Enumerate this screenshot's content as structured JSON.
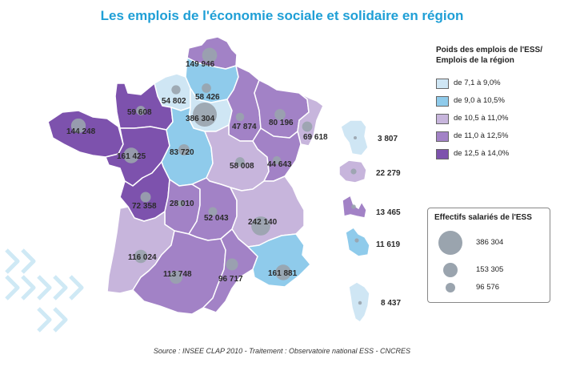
{
  "title": "Les emplois de l'économie sociale et solidaire en région",
  "legend": {
    "title_line1": "Poids des emplois de l'ESS/",
    "title_line2": "Emplois de la région",
    "classes": [
      {
        "label": "de 7,1 à 9,0%",
        "color": "#cfe6f4"
      },
      {
        "label": "de 9,0 à 10,5%",
        "color": "#8fcbeb"
      },
      {
        "label": "de 10,5 à 11,0%",
        "color": "#c7b5dc"
      },
      {
        "label": "de 11,0 à 12,5%",
        "color": "#a282c6"
      },
      {
        "label": "de 12,5 à 14,0%",
        "color": "#7d52ad"
      }
    ]
  },
  "size_legend": {
    "title": "Effectifs salariés de l'ESS",
    "values": [
      "386 304",
      "153 305",
      "96 576"
    ]
  },
  "regions": [
    {
      "name": "Nord-Pas-de-Calais",
      "value": "149 946",
      "class": 3
    },
    {
      "name": "Haute-Normandie",
      "value": "54 802",
      "class": 0
    },
    {
      "name": "Picardie",
      "value": "58 426",
      "class": 1
    },
    {
      "name": "Basse-Normandie",
      "value": "59 608",
      "class": 4
    },
    {
      "name": "Île-de-France",
      "value": "386 304",
      "class": 0
    },
    {
      "name": "Champagne-Ardenne",
      "value": "47 874",
      "class": 3
    },
    {
      "name": "Lorraine",
      "value": "80 196",
      "class": 3
    },
    {
      "name": "Alsace",
      "value": "69 618",
      "class": 2
    },
    {
      "name": "Bretagne",
      "value": "144 248",
      "class": 4
    },
    {
      "name": "Pays de la Loire",
      "value": "161 425",
      "class": 4
    },
    {
      "name": "Centre",
      "value": "83 720",
      "class": 1
    },
    {
      "name": "Bourgogne",
      "value": "58 008",
      "class": 2
    },
    {
      "name": "Franche-Comté",
      "value": "44 643",
      "class": 3
    },
    {
      "name": "Poitou-Charentes",
      "value": "72 358",
      "class": 4
    },
    {
      "name": "Limousin",
      "value": "28 010",
      "class": 3
    },
    {
      "name": "Auvergne",
      "value": "52 043",
      "class": 3
    },
    {
      "name": "Rhône-Alpes",
      "value": "242 140",
      "class": 2
    },
    {
      "name": "Aquitaine",
      "value": "116 024",
      "class": 2
    },
    {
      "name": "Midi-Pyrénées",
      "value": "113 748",
      "class": 3
    },
    {
      "name": "Languedoc-Roussillon",
      "value": "96 717",
      "class": 3
    },
    {
      "name": "Provence-Alpes-Côte d'Azur",
      "value": "161 881",
      "class": 1
    },
    {
      "name": "Corse",
      "value": "8 437",
      "class": 0
    }
  ],
  "dom": [
    {
      "name": "Guadeloupe",
      "value": "3 807",
      "class": 0
    },
    {
      "name": "Martinique",
      "value": "22 279",
      "class": 2
    },
    {
      "name": "Guyane",
      "value": "13 465",
      "class": 3
    },
    {
      "name": "La Réunion",
      "value": "11 619",
      "class": 1
    }
  ],
  "source": "Source : INSEE CLAP 2010 - Traitement : Observatoire national ESS - CNCRES"
}
